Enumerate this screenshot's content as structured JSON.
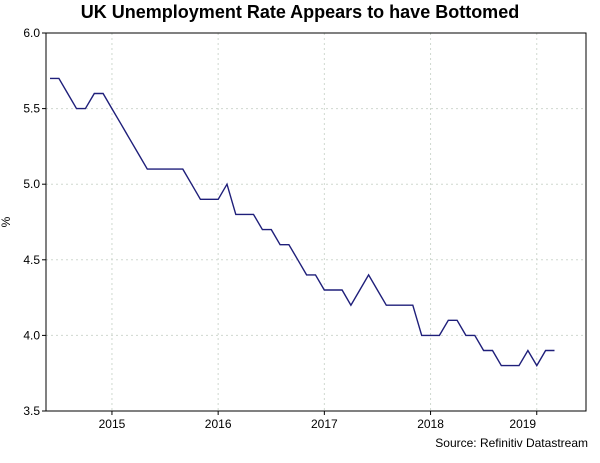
{
  "chart_data": {
    "type": "line",
    "title": "UK Unemployment Rate Appears to have Bottomed",
    "xlabel": "",
    "ylabel": "%",
    "ylim": [
      3.5,
      6.0
    ],
    "yticks": [
      "3.5",
      "4.0",
      "4.5",
      "5.0",
      "5.5",
      "6.0"
    ],
    "xticks": [
      "2015",
      "2016",
      "2017",
      "2018",
      "2019"
    ],
    "grid": true,
    "series_color": "#1f1f7a",
    "x": [
      "2014-06",
      "2014-07",
      "2014-08",
      "2014-09",
      "2014-10",
      "2014-11",
      "2014-12",
      "2015-01",
      "2015-02",
      "2015-03",
      "2015-04",
      "2015-05",
      "2015-06",
      "2015-07",
      "2015-08",
      "2015-09",
      "2015-10",
      "2015-11",
      "2015-12",
      "2016-01",
      "2016-02",
      "2016-03",
      "2016-04",
      "2016-05",
      "2016-06",
      "2016-07",
      "2016-08",
      "2016-09",
      "2016-10",
      "2016-11",
      "2016-12",
      "2017-01",
      "2017-02",
      "2017-03",
      "2017-04",
      "2017-05",
      "2017-06",
      "2017-07",
      "2017-08",
      "2017-09",
      "2017-10",
      "2017-11",
      "2017-12",
      "2018-01",
      "2018-02",
      "2018-03",
      "2018-04",
      "2018-05",
      "2018-06",
      "2018-07",
      "2018-08",
      "2018-09",
      "2018-10",
      "2018-11",
      "2018-12",
      "2019-01",
      "2019-02",
      "2019-03"
    ],
    "series": [
      {
        "values": [
          5.7,
          5.7,
          5.6,
          5.5,
          5.5,
          5.6,
          5.6,
          5.5,
          5.4,
          5.3,
          5.2,
          5.1,
          5.1,
          5.1,
          5.1,
          5.1,
          5.0,
          4.9,
          4.9,
          4.9,
          5.0,
          4.8,
          4.8,
          4.8,
          4.7,
          4.7,
          4.6,
          4.6,
          4.5,
          4.4,
          4.4,
          4.3,
          4.3,
          4.3,
          4.2,
          4.3,
          4.4,
          4.3,
          4.2,
          4.2,
          4.2,
          4.2,
          4.0,
          4.0,
          4.0,
          4.1,
          4.1,
          4.0,
          4.0,
          3.9,
          3.9,
          3.8,
          3.8,
          3.8,
          3.9,
          3.8,
          3.9,
          3.9
        ]
      }
    ]
  },
  "source": "Source: Refinitiv Datastream"
}
